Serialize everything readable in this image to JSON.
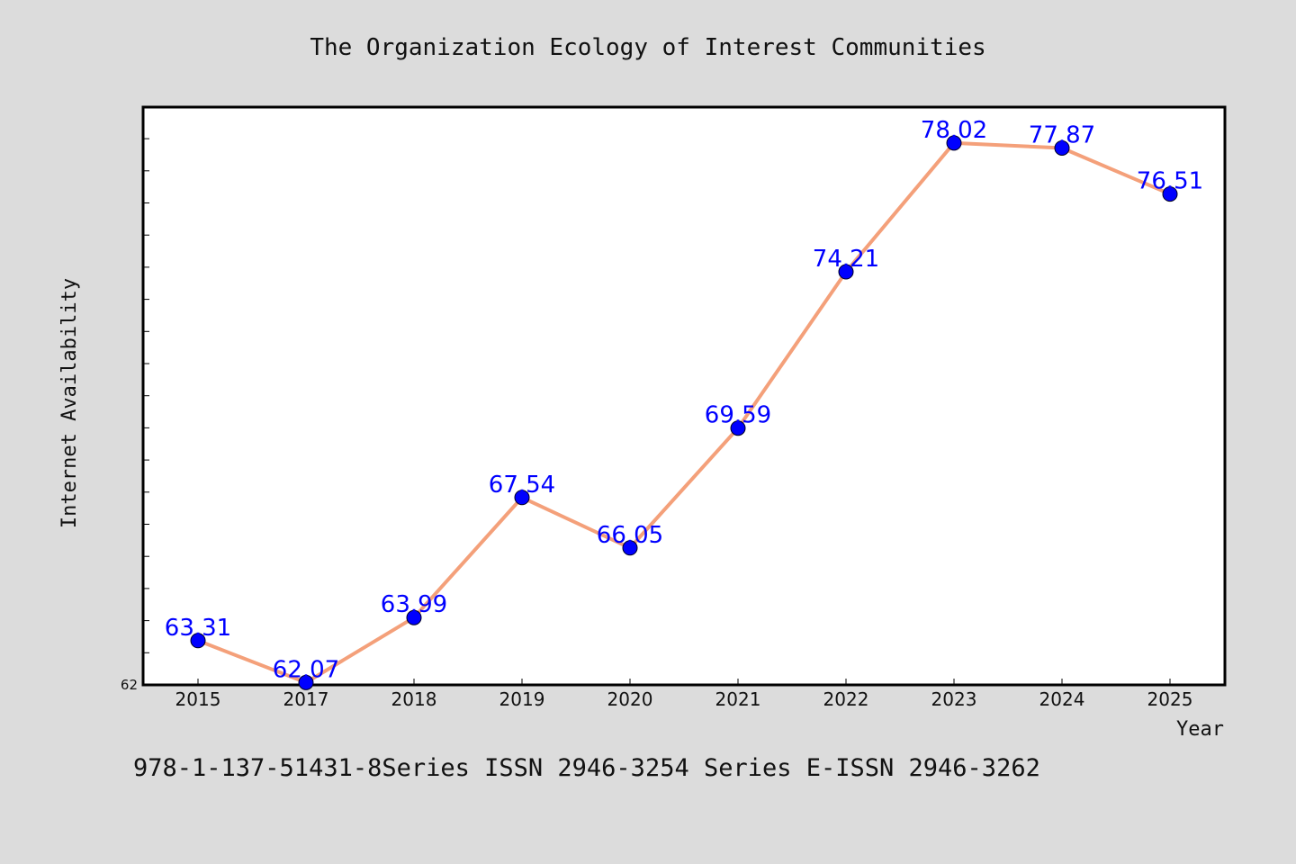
{
  "chart_data": {
    "type": "line",
    "title": "The Organization Ecology of Interest Communities",
    "xlabel": "Year",
    "ylabel": "Internet Availability",
    "categories": [
      "2015",
      "2017",
      "2018",
      "2019",
      "2020",
      "2021",
      "2022",
      "2023",
      "2024",
      "2025"
    ],
    "series": [
      {
        "values": [
          63.31,
          62.07,
          63.99,
          67.54,
          66.05,
          69.59,
          74.21,
          78.02,
          77.87,
          76.51
        ],
        "labels": [
          "63.31",
          "62.07",
          "63.99",
          "67.54",
          "66.05",
          "69.59",
          "74.21",
          "78.02",
          "77.87",
          "76.51"
        ],
        "line_color": "#f4a07a",
        "marker_color": "#0000ff"
      }
    ],
    "ylim": [
      62,
      79
    ],
    "y_tick_labels": [
      "62"
    ],
    "grid": false,
    "background_color": "#dcdcdc",
    "plot_background_color": "#ffffff"
  },
  "footer": {
    "text": "978-1-137-51431-8Series ISSN 2946-3254 Series E-ISSN 2946-3262"
  }
}
